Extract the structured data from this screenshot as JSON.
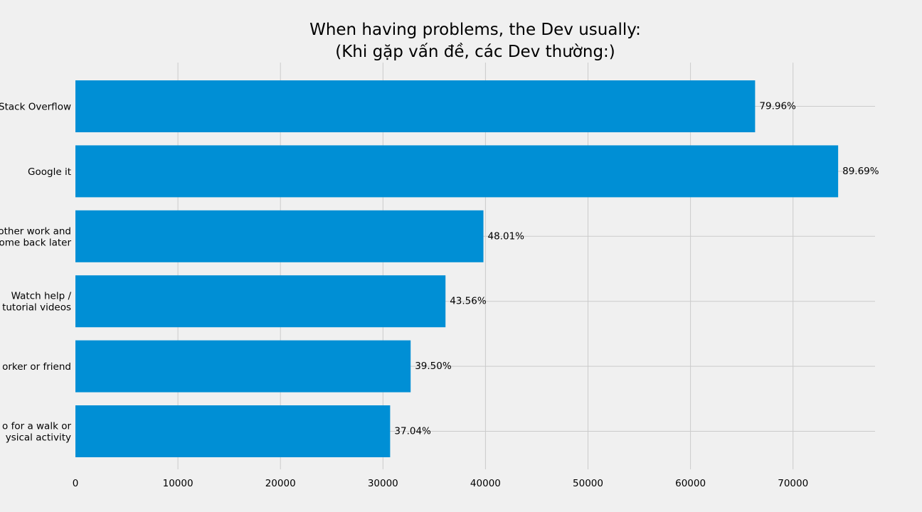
{
  "chart_data": {
    "type": "bar",
    "orientation": "horizontal",
    "title": [
      "When having problems, the Dev usually:",
      "(Khi gặp vấn đề, các Dev thường:)"
    ],
    "xlabel": "",
    "ylabel": "",
    "xlim": [
      0,
      78000
    ],
    "x_ticks": [
      0,
      10000,
      20000,
      30000,
      40000,
      50000,
      60000,
      70000
    ],
    "grid": true,
    "legend": "none",
    "bar_color": "#008fd5",
    "categories": [
      [
        "Stack Overflow"
      ],
      [
        "Google it"
      ],
      [
        "other work and",
        "ome back later"
      ],
      [
        "Watch help /",
        "tutorial videos"
      ],
      [
        "orker or friend"
      ],
      [
        "o for a walk or",
        "ysical activity"
      ]
    ],
    "values": [
      66300,
      74400,
      39800,
      36100,
      32700,
      30700
    ],
    "data_labels": [
      "79.96%",
      "89.69%",
      "48.01%",
      "43.56%",
      "39.50%",
      "37.04%"
    ]
  }
}
